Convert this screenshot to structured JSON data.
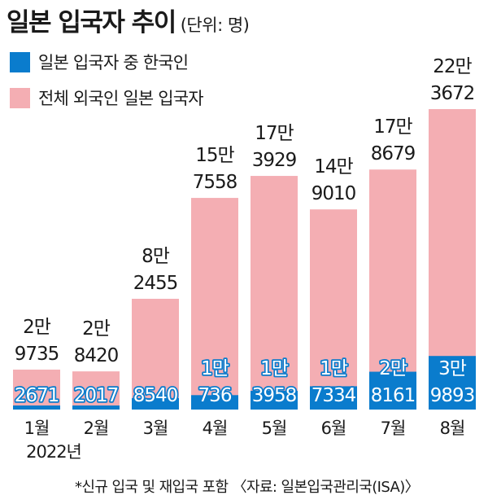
{
  "title": "일본 입국자 추이",
  "unit": "(단위: 명)",
  "footnote": "*신규 입국 및 재입국 포함 〈자료: 일본입국관리국(ISA)〉",
  "colors": {
    "korean": "#0a7ccd",
    "total": "#f4aeb3"
  },
  "chart_data": {
    "type": "bar",
    "categories": [
      "1월",
      "2월",
      "3월",
      "4월",
      "5월",
      "6월",
      "7월",
      "8월"
    ],
    "category_sublabel": "2022년",
    "series": [
      {
        "name": "일본 입국자 중 한국인",
        "values": [
          2671,
          2017,
          8540,
          10736,
          13958,
          17334,
          28161,
          39893
        ],
        "label_lines": [
          [
            "2671"
          ],
          [
            "2017"
          ],
          [
            "8540"
          ],
          [
            "1만",
            "736"
          ],
          [
            "1만",
            "3958"
          ],
          [
            "1만",
            "7334"
          ],
          [
            "2만",
            "8161"
          ],
          [
            "3만",
            "9893"
          ]
        ]
      },
      {
        "name": "전체 외국인 일본 입국자",
        "values": [
          29735,
          28420,
          82455,
          157558,
          173929,
          149010,
          178679,
          223672
        ],
        "label_lines": [
          [
            "2만",
            "9735"
          ],
          [
            "2만",
            "8420"
          ],
          [
            "8만",
            "2455"
          ],
          [
            "15만",
            "7558"
          ],
          [
            "17만",
            "3929"
          ],
          [
            "14만",
            "9010"
          ],
          [
            "17만",
            "8679"
          ],
          [
            "22만",
            "3672"
          ]
        ]
      }
    ],
    "overlay": true,
    "ylim": [
      0,
      240000
    ],
    "legend_position": "top-left",
    "grid": false
  }
}
